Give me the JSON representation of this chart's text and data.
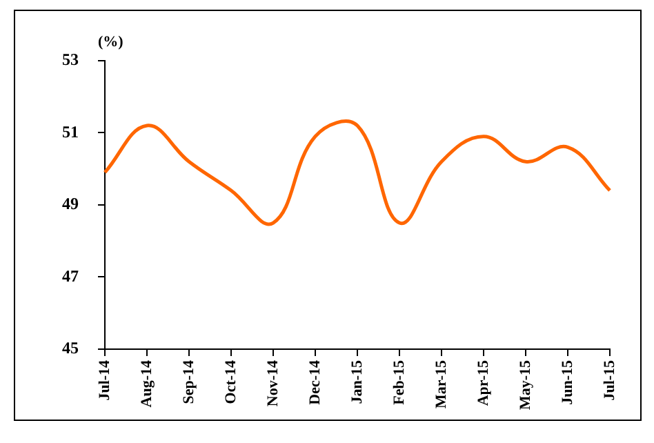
{
  "chart_data": {
    "type": "line",
    "ylabel": "(%)",
    "categories": [
      "Jul-14",
      "Aug-14",
      "Sep-14",
      "Oct-14",
      "Nov-14",
      "Dec-14",
      "Jan-15",
      "Feb-15",
      "Mar-15",
      "Apr-15",
      "May-15",
      "Jun-15",
      "Jul-15"
    ],
    "series": [
      {
        "color": "#ff6600",
        "values": [
          49.9,
          51.2,
          50.2,
          49.4,
          48.5,
          50.9,
          51.2,
          48.5,
          50.2,
          50.9,
          50.2,
          50.6,
          49.4
        ]
      }
    ],
    "ylim": [
      45,
      53
    ],
    "yticks": [
      45,
      47,
      49,
      51,
      53
    ],
    "grid": false,
    "legend": false,
    "marker": "none",
    "line_style": "solid"
  }
}
